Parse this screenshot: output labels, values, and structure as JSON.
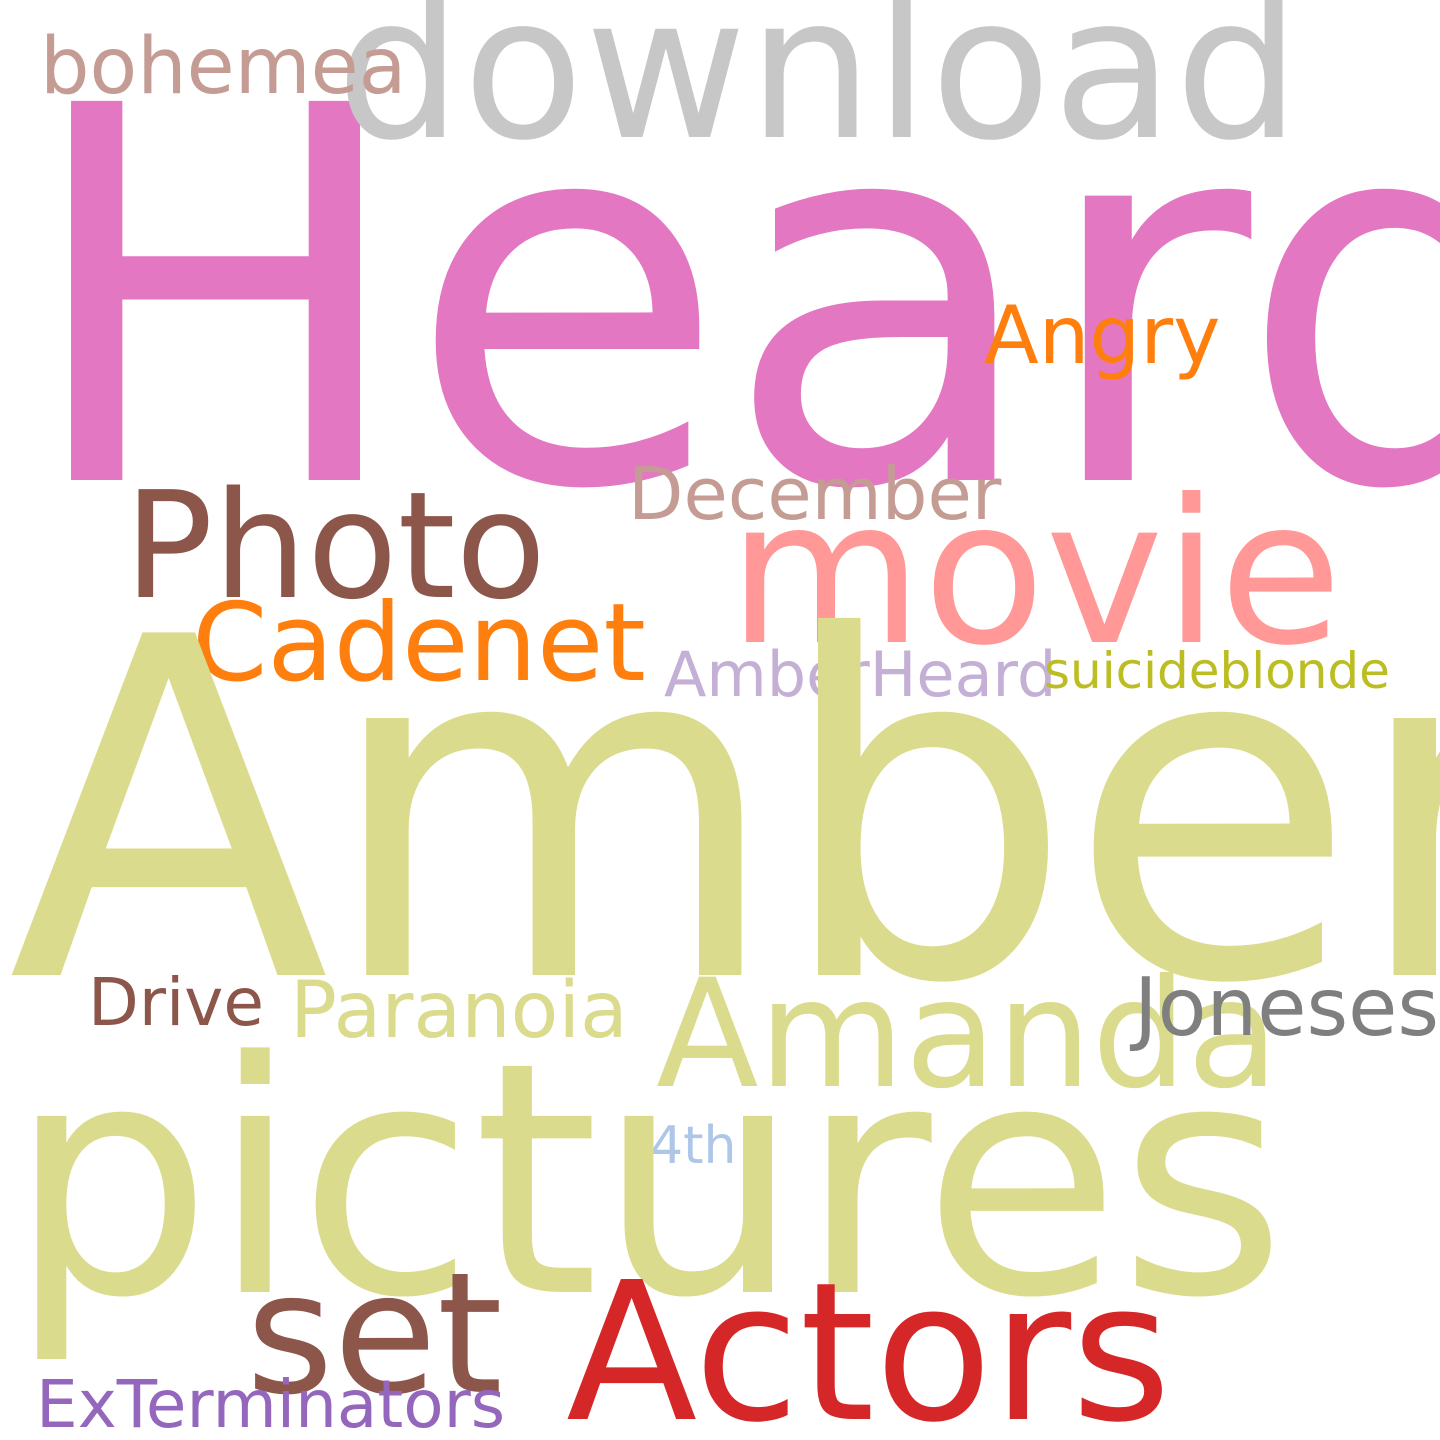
{
  "words": [
    {
      "text": "Heard",
      "color": "#e377c2"
    },
    {
      "text": "Amber",
      "color": "#dbdb8d"
    },
    {
      "text": "pictures",
      "color": "#dbdb8d"
    },
    {
      "text": "download",
      "color": "#c7c7c7"
    },
    {
      "text": "movie",
      "color": "#ff9896"
    },
    {
      "text": "Photo",
      "color": "#8c564b"
    },
    {
      "text": "Actors",
      "color": "#d62728"
    },
    {
      "text": "set",
      "color": "#8c564b"
    },
    {
      "text": "Amanda",
      "color": "#dbdb8d"
    },
    {
      "text": "Cadenet",
      "color": "#ff7f0e"
    },
    {
      "text": "bohemea",
      "color": "#c49c94"
    },
    {
      "text": "December",
      "color": "#c49c94"
    },
    {
      "text": "Angry",
      "color": "#ff7f0e"
    },
    {
      "text": "AmberHeard",
      "color": "#c5b0d5"
    },
    {
      "text": "suicideblonde",
      "color": "#bcbd22"
    },
    {
      "text": "Paranoia",
      "color": "#dbdb8d"
    },
    {
      "text": "Joneses",
      "color": "#7f7f7f"
    },
    {
      "text": "Drive",
      "color": "#8c564b"
    },
    {
      "text": "ExTerminators",
      "color": "#9467bd"
    },
    {
      "text": "4th",
      "color": "#aec7e8"
    }
  ]
}
